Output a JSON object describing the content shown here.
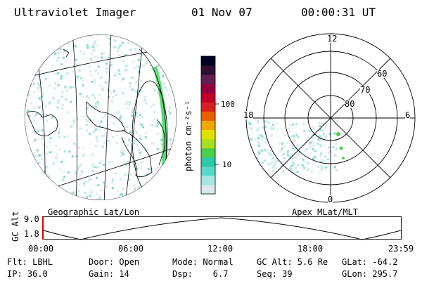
{
  "header": {
    "instrument": "Ultraviolet Imager",
    "date": "01 Nov 07",
    "time": "00:00:31 UT"
  },
  "left_panel": {
    "label": "Geographic Lat/Lon"
  },
  "right_panel": {
    "label": "Apex MLat/MLT",
    "hour_labels": {
      "top": "12",
      "left": "18",
      "right": "6",
      "bottom": "0"
    },
    "lat_labels": [
      "60",
      "70",
      "80"
    ]
  },
  "colorbar": {
    "unit_label": "photon cm⁻²s⁻¹",
    "ticks": [
      "100",
      "10"
    ],
    "colors": [
      "#d8e8e8",
      "#a9e4e4",
      "#58d8c8",
      "#2cc8a8",
      "#49d04a",
      "#a6e020",
      "#e0e000",
      "#f0a800",
      "#e86000",
      "#d82020",
      "#c00028",
      "#900040",
      "#602050",
      "#301030",
      "#000020"
    ]
  },
  "altitude_strip": {
    "axis_title": "GC Alt",
    "ymax": "9.0",
    "ymin": "1.8",
    "time_ticks": [
      "00:00",
      "06:00",
      "12:00",
      "18:00",
      "23:59"
    ]
  },
  "status": {
    "flt": "Flt: LBHL",
    "door": "Door: Open",
    "mode": "Mode: Normal",
    "gc_alt": "GC Alt: 5.6 Re",
    "glat": "GLat: -64.2",
    "ip": "IP: 36.0",
    "gain": "Gain: 14",
    "dsp": "Dsp:    6.7",
    "seq": "Seq: 39",
    "glon": "GLon: 295.7"
  }
}
